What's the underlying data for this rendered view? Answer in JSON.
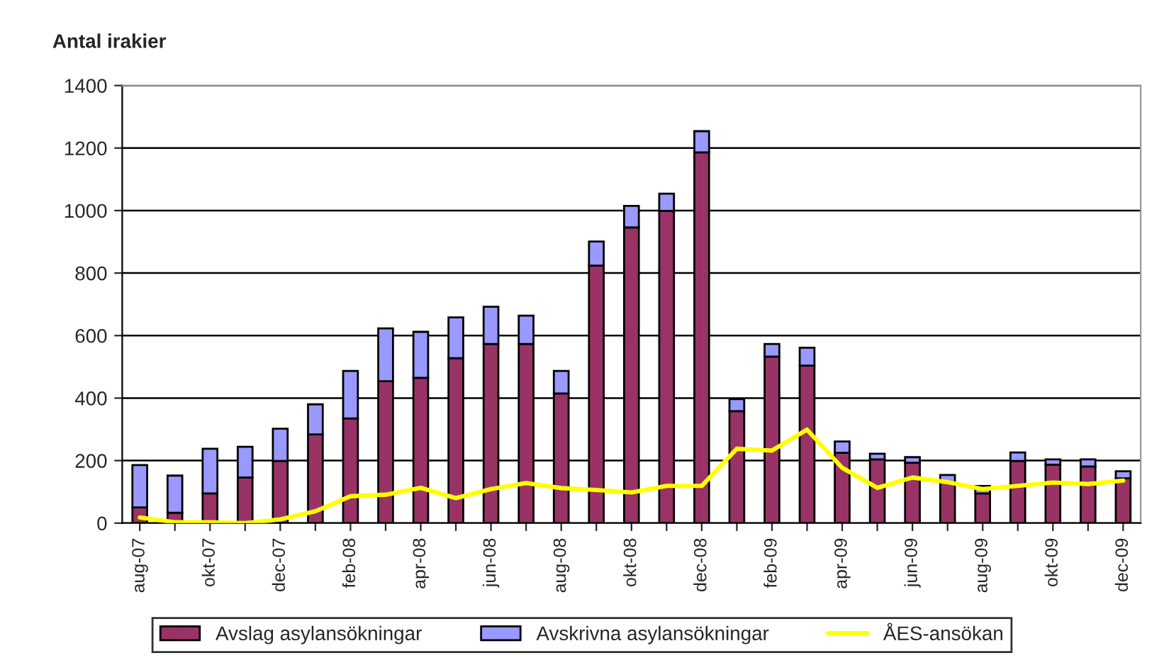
{
  "chart_data": {
    "type": "bar",
    "stacked": true,
    "ylabel": "Antal irakier",
    "categories": [
      "aug-07",
      null,
      "okt-07",
      null,
      "dec-07",
      null,
      "feb-08",
      null,
      "apr-08",
      null,
      "jun-08",
      null,
      "aug-08",
      null,
      "okt-08",
      null,
      "dec-08",
      null,
      "feb-09",
      null,
      "apr-09",
      null,
      "jun-09",
      null,
      "aug-09",
      null,
      "okt-09",
      null,
      "dec-09"
    ],
    "series": [
      {
        "name": "Avslag asylansökningar",
        "color": "#993366",
        "values": [
          50,
          33,
          95,
          146,
          199,
          284,
          335,
          454,
          465,
          528,
          573,
          573,
          415,
          824,
          946,
          999,
          1186,
          358,
          533,
          504,
          225,
          204,
          193,
          131,
          95,
          199,
          187,
          181,
          143
        ]
      },
      {
        "name": "Avskrivna asylansökningar",
        "color": "#9999ff",
        "values": [
          136,
          119,
          143,
          98,
          103,
          96,
          152,
          169,
          147,
          130,
          119,
          91,
          72,
          77,
          69,
          55,
          68,
          39,
          40,
          57,
          36,
          18,
          18,
          23,
          24,
          27,
          17,
          23,
          23
        ]
      },
      {
        "name": "ÅES-ansökan",
        "type": "line",
        "color": "#ffff00",
        "marker": "none",
        "values": [
          18,
          3,
          3,
          0,
          12,
          38,
          86,
          91,
          113,
          80,
          109,
          128,
          112,
          106,
          98,
          119,
          119,
          238,
          232,
          299,
          177,
          113,
          146,
          131,
          109,
          119,
          130,
          125,
          136
        ]
      }
    ],
    "ylim": [
      0,
      1400
    ],
    "yticks": [
      0,
      200,
      400,
      600,
      800,
      1000,
      1200,
      1400
    ],
    "grid": "y",
    "legend": "bottom"
  }
}
